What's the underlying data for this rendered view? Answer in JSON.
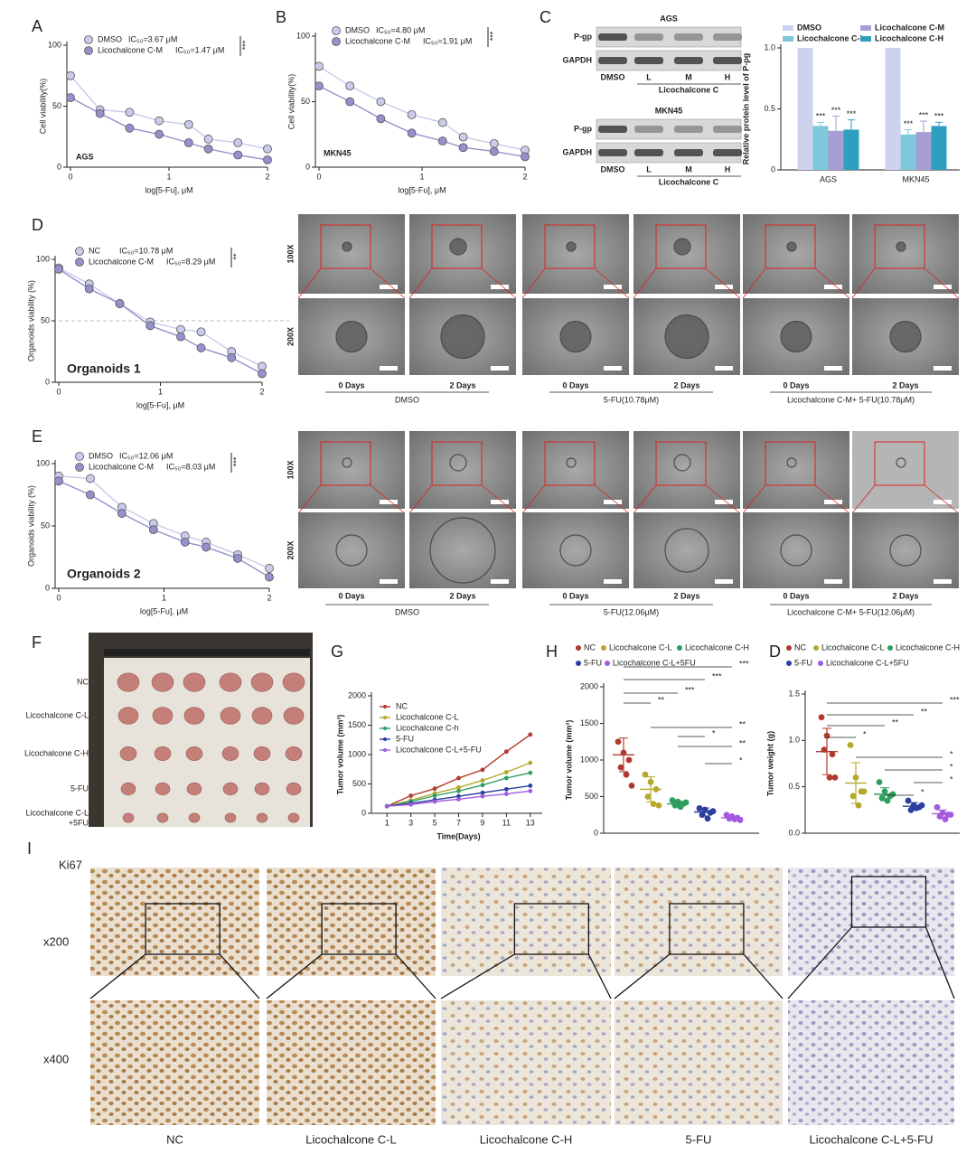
{
  "chart_data": [
    {
      "type": "line",
      "panel": "A",
      "annotation": "AGS",
      "xlabel": "log[5-Fu], μM",
      "ylabel": "Cell viability(%)",
      "significance": "***",
      "x": [
        0,
        0.3,
        0.6,
        0.9,
        1.2,
        1.4,
        1.7,
        2
      ],
      "xlim": [
        0,
        2
      ],
      "xticks": [
        0,
        1,
        2
      ],
      "ylim": [
        0,
        100
      ],
      "yticks": [
        0,
        50,
        100
      ],
      "series": [
        {
          "name": "DMSO",
          "ic50": "IC₅₀=3.67 μM",
          "color": "#c9cbea",
          "values": [
            75,
            47,
            45,
            38,
            35,
            23,
            20,
            15
          ]
        },
        {
          "name": "Licochalcone C-M",
          "ic50": "IC₅₀=1.47 μM",
          "color": "#9591cc",
          "values": [
            57,
            44,
            32,
            27,
            20,
            15,
            10,
            6
          ]
        }
      ]
    },
    {
      "type": "line",
      "panel": "B",
      "annotation": "MKN45",
      "xlabel": "log[5-Fu], μM",
      "ylabel": "Cell viability(%)",
      "significance": "***",
      "x": [
        0,
        0.3,
        0.6,
        0.9,
        1.2,
        1.4,
        1.7,
        2
      ],
      "xlim": [
        0,
        2
      ],
      "xticks": [
        0,
        1,
        2
      ],
      "ylim": [
        0,
        100
      ],
      "yticks": [
        0,
        50,
        100
      ],
      "series": [
        {
          "name": "DMSO",
          "ic50": "IC₅₀=4.80 μM",
          "color": "#c9cbea",
          "values": [
            77,
            62,
            50,
            40,
            34,
            23,
            18,
            13
          ]
        },
        {
          "name": "Licochalcone C-M",
          "ic50": "IC₅₀=1.91 μM",
          "color": "#9591cc",
          "values": [
            62,
            50,
            37,
            26,
            20,
            15,
            12,
            8
          ]
        }
      ]
    },
    {
      "type": "bar",
      "panel": "C",
      "ylabel": "Relative protein level of P-pg",
      "categories": [
        "AGS",
        "MKN45"
      ],
      "ylim": [
        0,
        1
      ],
      "yticks": [
        0,
        0.5,
        {
          "value": 1,
          "label": "1.0"
        }
      ],
      "series": [
        {
          "name": "DMSO",
          "color": "#cdd3ee",
          "values": [
            1,
            1
          ]
        },
        {
          "name": "Licochalcone C-L",
          "color": "#7ec8dc",
          "values": [
            0.36,
            0.29
          ],
          "errors": [
            0.03,
            0.04
          ],
          "significance": [
            "***",
            "***"
          ]
        },
        {
          "name": "Licochalcone C-M",
          "color": "#a79ed6",
          "values": [
            0.32,
            0.31
          ],
          "errors": [
            0.12,
            0.09
          ],
          "significance": [
            "***",
            "***"
          ]
        },
        {
          "name": "Licochalcone C-H",
          "color": "#2f9fbf",
          "values": [
            0.33,
            0.36
          ],
          "errors": [
            0.08,
            0.03
          ],
          "significance": [
            "***",
            "***"
          ]
        }
      ]
    },
    {
      "type": "line",
      "panel": "D",
      "annotation": "Organoids 1",
      "xlabel": "log[5-Fu], μM",
      "ylabel": "Organoids viability (%)",
      "significance": "**",
      "hline": 50,
      "x": [
        0,
        0.3,
        0.6,
        0.9,
        1.2,
        1.4,
        1.7,
        2
      ],
      "xlim": [
        0,
        2
      ],
      "xticks": [
        0,
        1,
        2
      ],
      "ylim": [
        0,
        100
      ],
      "yticks": [
        0,
        50,
        100
      ],
      "series": [
        {
          "name": "NC",
          "ic50": "IC₅₀=10.78 μM",
          "color": "#c9cbea",
          "values": [
            93,
            80,
            64,
            49,
            43,
            41,
            25,
            13
          ]
        },
        {
          "name": "Licochalcone C-M",
          "ic50": "IC₅₀=8.29 μM",
          "color": "#9591cc",
          "values": [
            92,
            76,
            64,
            46,
            37,
            28,
            20,
            7
          ]
        }
      ]
    },
    {
      "type": "line",
      "panel": "E",
      "annotation": "Organoids 2",
      "xlabel": "log[5-Fu], μM",
      "ylabel": "Organoids viability (%)",
      "significance": "***",
      "x": [
        0,
        0.3,
        0.6,
        0.9,
        1.2,
        1.4,
        1.7,
        2
      ],
      "xlim": [
        0,
        2
      ],
      "xticks": [
        0,
        1,
        2
      ],
      "ylim": [
        0,
        100
      ],
      "yticks": [
        0,
        50,
        100
      ],
      "series": [
        {
          "name": "DMSO",
          "ic50": "IC₅₀=12.06 μM",
          "color": "#c9cbea",
          "values": [
            90,
            88,
            65,
            52,
            42,
            37,
            27,
            16
          ]
        },
        {
          "name": "Licochalcone C-M",
          "ic50": "IC₅₀=8.03 μM",
          "color": "#9591cc",
          "values": [
            86,
            75,
            60,
            47,
            37,
            33,
            24,
            9
          ]
        }
      ]
    },
    {
      "type": "line",
      "panel": "G",
      "xlabel": "Time(Days)",
      "ylabel": "Tumor volume (mm³)",
      "x": [
        1,
        3,
        5,
        7,
        9,
        11,
        13
      ],
      "xlim": [
        0,
        14
      ],
      "xticks": [
        1,
        3,
        5,
        7,
        9,
        11,
        13
      ],
      "ylim": [
        0,
        2000
      ],
      "yticks": [
        0,
        500,
        1000,
        1500,
        2000
      ],
      "series": [
        {
          "name": "NC",
          "color": "#b03a2e",
          "values": [
            120,
            300,
            420,
            600,
            740,
            1050,
            1340
          ]
        },
        {
          "name": "Licochalcone C-L",
          "color": "#b5a82b",
          "values": [
            120,
            220,
            340,
            440,
            560,
            700,
            860
          ]
        },
        {
          "name": "Licochalcone C-h",
          "color": "#2e9e5e",
          "values": [
            120,
            200,
            300,
            380,
            480,
            600,
            690
          ]
        },
        {
          "name": "5-FU",
          "color": "#2c3e9e",
          "values": [
            120,
            170,
            230,
            290,
            350,
            410,
            470
          ]
        },
        {
          "name": "Licochalcone C-L+5-FU",
          "color": "#a25be0",
          "values": [
            120,
            150,
            200,
            240,
            290,
            330,
            380
          ]
        }
      ]
    },
    {
      "type": "dot",
      "panel": "H",
      "ylabel": "Tumor volume (mm³)",
      "ylim": [
        0,
        2000
      ],
      "yticks": [
        0,
        500,
        1000,
        1500,
        2000
      ],
      "significance": [
        "***",
        "***",
        "***",
        "**",
        "**",
        "**",
        "*",
        "*"
      ],
      "series": [
        {
          "name": "NC",
          "color": "#b03a2e",
          "values": [
            1250,
            1100,
            1000,
            900,
            800,
            650
          ],
          "mean": 1070,
          "error": 230
        },
        {
          "name": "Licochalcone C-L",
          "color": "#b5a82b",
          "values": [
            800,
            700,
            600,
            500,
            400,
            380
          ],
          "mean": 600,
          "error": 170
        },
        {
          "name": "Licochalcone C-H",
          "color": "#2e9e5e",
          "values": [
            450,
            430,
            400,
            380,
            360,
            420
          ],
          "mean": 400,
          "error": 40
        },
        {
          "name": "5-FU",
          "color": "#2c3e9e",
          "values": [
            340,
            320,
            280,
            250,
            200,
            300
          ],
          "mean": 290,
          "error": 55
        },
        {
          "name": "Licochalcone C-L+5FU",
          "color": "#a25be0",
          "values": [
            250,
            230,
            210,
            200,
            190,
            180
          ],
          "mean": 210,
          "error": 25
        }
      ]
    },
    {
      "type": "dot",
      "panel": "D",
      "ylabel": "Tumor weight (g)",
      "ylim": [
        0,
        1.5
      ],
      "yticks": [
        {
          "value": 0,
          "label": "0.0"
        },
        0.5,
        {
          "value": 1,
          "label": "1.0"
        },
        1.5
      ],
      "significance": [
        "***",
        "**",
        "**",
        "*",
        "*",
        "*",
        "*",
        "*"
      ],
      "series": [
        {
          "name": "NC",
          "color": "#b03a2e",
          "values": [
            1.25,
            1.05,
            0.85,
            0.9,
            0.6,
            0.6
          ],
          "mean": 0.88,
          "error": 0.25
        },
        {
          "name": "Licochalcone C-L",
          "color": "#b5a82b",
          "values": [
            0.95,
            0.6,
            0.45,
            0.4,
            0.3,
            0.45
          ],
          "mean": 0.54,
          "error": 0.22
        },
        {
          "name": "Licochalcone C-H",
          "color": "#2e9e5e",
          "values": [
            0.55,
            0.45,
            0.4,
            0.38,
            0.35,
            0.42
          ],
          "mean": 0.42,
          "error": 0.07
        },
        {
          "name": "5-FU",
          "color": "#2c3e9e",
          "values": [
            0.35,
            0.3,
            0.28,
            0.25,
            0.27,
            0.3
          ],
          "mean": 0.29,
          "error": 0.04
        },
        {
          "name": "Licochalcone C-L+5FU",
          "color": "#a25be0",
          "values": [
            0.28,
            0.22,
            0.2,
            0.18,
            0.15,
            0.2
          ],
          "mean": 0.21,
          "error": 0.04
        }
      ]
    }
  ],
  "blots": [
    {
      "cell_line": "AGS",
      "rows": [
        "P-gp",
        "GAPDH"
      ],
      "lanes": [
        "DMSO",
        "L",
        "M",
        "H"
      ],
      "group": "Licochalcone C"
    },
    {
      "cell_line": "MKN45",
      "rows": [
        "P-gp",
        "GAPDH"
      ],
      "lanes": [
        "DMSO",
        "L",
        "M",
        "H"
      ],
      "group": "Licochalcone C"
    }
  ],
  "organoid_images": [
    {
      "magnifications": [
        "100X",
        "200X"
      ],
      "days": [
        "0 Days",
        "2 Days",
        "0 Days",
        "2 Days",
        "0 Days",
        "2 Days"
      ],
      "groups": [
        "DMSO",
        "5-FU(10.78μM)",
        "Licochalcone C-M+ 5-FU(10.78μM)"
      ]
    },
    {
      "magnifications": [
        "100X",
        "200X"
      ],
      "days": [
        "0 Days",
        "2 Days",
        "0 Days",
        "2 Days",
        "0 Days",
        "2 Days"
      ],
      "groups": [
        "DMSO",
        "5-FU(12.06μM)",
        "Licochalcone C-M+ 5-FU(12.06μM)"
      ]
    }
  ],
  "tumor_photo": {
    "panel": "F",
    "labels": [
      "NC",
      "Licochalcone C-L",
      "Licochalcone C-H",
      "5-FU",
      [
        "Licochalcone C-L",
        "+5FU"
      ]
    ]
  },
  "ihc": {
    "panel": "I",
    "stain": "Ki67",
    "magnifications": [
      "x200",
      "x400"
    ],
    "groups": [
      "NC",
      "Licochalcone C-L",
      "Licochalcone C-H",
      "5-FU",
      "Licochalcone C-L+5-FU"
    ]
  }
}
